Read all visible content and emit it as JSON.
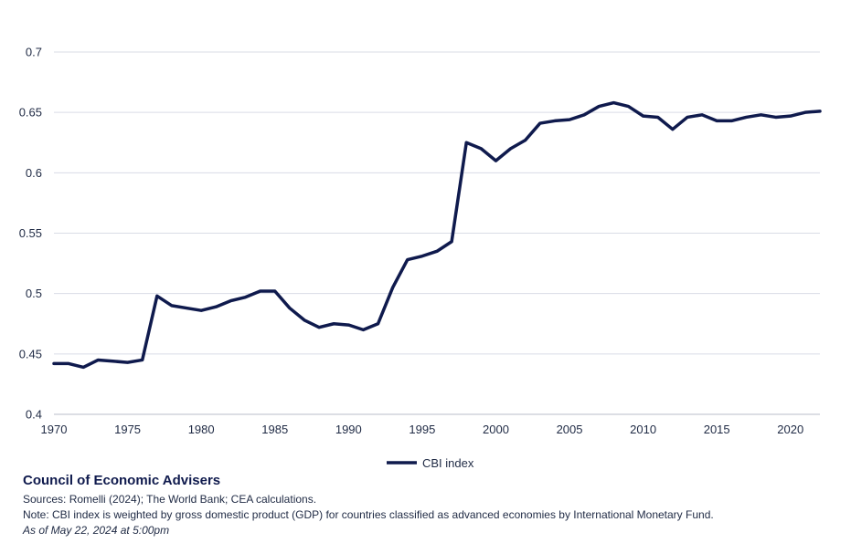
{
  "chart_data": {
    "type": "line",
    "x": [
      1970,
      1971,
      1972,
      1973,
      1974,
      1975,
      1976,
      1977,
      1978,
      1979,
      1980,
      1981,
      1982,
      1983,
      1984,
      1985,
      1986,
      1987,
      1988,
      1989,
      1990,
      1991,
      1992,
      1993,
      1994,
      1995,
      1996,
      1997,
      1998,
      1999,
      2000,
      2001,
      2002,
      2003,
      2004,
      2005,
      2006,
      2007,
      2008,
      2009,
      2010,
      2011,
      2012,
      2013,
      2014,
      2015,
      2016,
      2017,
      2018,
      2019,
      2020,
      2021,
      2022
    ],
    "series": [
      {
        "name": "CBI index",
        "color": "#0f1a4d",
        "values": [
          0.442,
          0.442,
          0.439,
          0.445,
          0.444,
          0.443,
          0.445,
          0.498,
          0.49,
          0.488,
          0.486,
          0.489,
          0.494,
          0.497,
          0.502,
          0.502,
          0.488,
          0.478,
          0.472,
          0.475,
          0.474,
          0.47,
          0.475,
          0.505,
          0.528,
          0.531,
          0.535,
          0.543,
          0.625,
          0.62,
          0.61,
          0.62,
          0.627,
          0.641,
          0.643,
          0.644,
          0.648,
          0.655,
          0.658,
          0.655,
          0.647,
          0.646,
          0.636,
          0.646,
          0.648,
          0.643,
          0.643,
          0.646,
          0.648,
          0.646,
          0.647,
          0.65,
          0.651
        ]
      }
    ],
    "xticks": [
      "1970",
      "1975",
      "1980",
      "1985",
      "1990",
      "1995",
      "2000",
      "2005",
      "2010",
      "2015",
      "2020"
    ],
    "yticks": [
      "0.4",
      "0.45",
      "0.5",
      "0.55",
      "0.6",
      "0.65",
      "0.7"
    ],
    "xlim": [
      1970,
      2022
    ],
    "ylim": [
      0.4,
      0.7
    ],
    "grid": "horizontal",
    "legend": "bottom-center",
    "title": "",
    "xlabel": "",
    "ylabel": ""
  },
  "footer": {
    "org": "Council of Economic Advisers",
    "sources": "Sources: Romelli (2024); The World Bank; CEA calculations.",
    "note": "Note: CBI index is weighted by gross domestic product (GDP) for countries classified as advanced economies by International Monetary Fund.",
    "asof": "As of May 22, 2024 at 5:00pm"
  }
}
